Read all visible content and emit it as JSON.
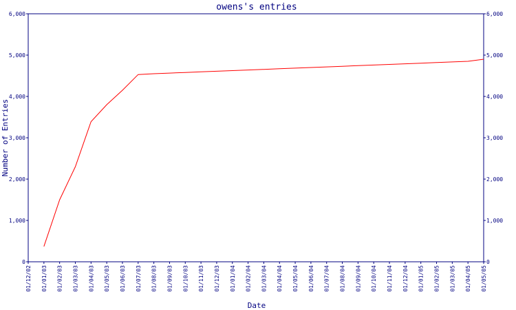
{
  "chart_data": {
    "type": "line",
    "title": "owens's entries",
    "xlabel": "Date",
    "ylabel": "Number of Entries",
    "ylim": [
      0,
      6000
    ],
    "y_ticks": [
      0,
      1000,
      2000,
      3000,
      4000,
      5000,
      6000
    ],
    "y_tick_labels": [
      "0",
      "1,000",
      "2,000",
      "3,000",
      "4,000",
      "5,000",
      "6,000"
    ],
    "grid": false,
    "categories": [
      "01/12/02",
      "01/01/03",
      "01/02/03",
      "01/03/03",
      "01/04/03",
      "01/05/03",
      "01/06/03",
      "01/07/03",
      "01/08/03",
      "01/09/03",
      "01/10/03",
      "01/11/03",
      "01/12/03",
      "01/01/04",
      "01/02/04",
      "01/03/04",
      "01/04/04",
      "01/05/04",
      "01/06/04",
      "01/07/04",
      "01/08/04",
      "01/09/04",
      "01/10/04",
      "01/11/04",
      "01/12/04",
      "01/01/05",
      "01/02/05",
      "01/03/05",
      "01/04/05",
      "01/05/05"
    ],
    "series": [
      {
        "color": "#ff0000",
        "values": [
          null,
          370,
          1500,
          2300,
          3390,
          3800,
          4150,
          4530,
          4550,
          4565,
          4580,
          4595,
          4610,
          4625,
          4640,
          4655,
          4670,
          4685,
          4700,
          4715,
          4730,
          4745,
          4760,
          4775,
          4790,
          4805,
          4820,
          4835,
          4850,
          4900
        ]
      }
    ],
    "colors": {
      "axis": "#000080",
      "series": "#ff0000"
    }
  }
}
